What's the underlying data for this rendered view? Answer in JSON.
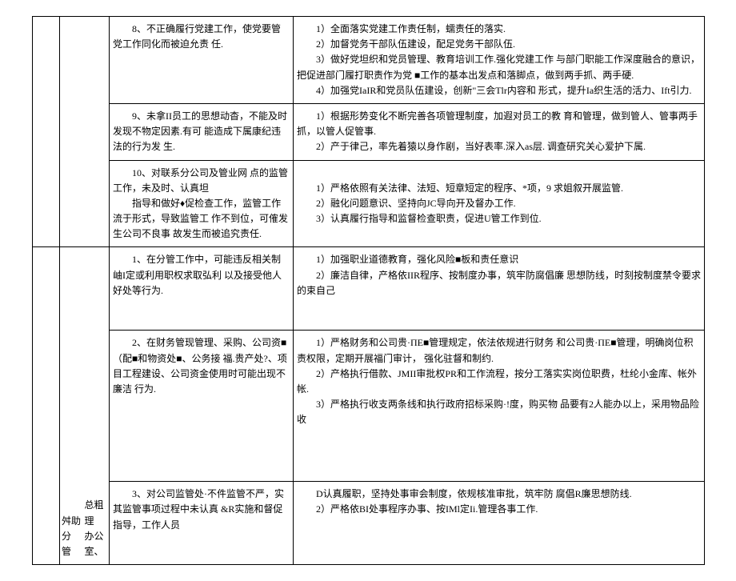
{
  "rows": [
    {
      "col1": "",
      "col2": "",
      "col3": "　　8、不正确履行党建工作，使党要管党工作同化而被迫允责 任.",
      "col4": "　　1）全面落实党建工作责任制，蠕责任的落实.\n　　2）加督党务干部队伍建设，配足党务干部队伍.\n　　3）做好党坦织和党员管理、教育培训工作.强化党建工作 与部门职能工作深度融合的意识，把促进部门履打职责作为党 ■工作的基本出发点和落脚点，做到两手抓、两手硬.\n　　4）加强党IaIR和党员队伍建设，创新\"三会Tlr内容和 形式，提升Ia织生活的活力、Ift引力."
    },
    {
      "col1": "",
      "col2": "",
      "col3": "　　9、未拿II员工的思想动杳，不能及时发现不物定因素.有可 能造成下属康纪违法的行为发 生.",
      "col4": "　　1）根据形势变化不断完善各项管理制度，加遐对员工的教 育和管理，做到管人、管事两手抓，以管人促管事.\n　　2）产于律己，率先着猿以身作剧，当好表率.深入as层. 调查研究关心爱护下属."
    },
    {
      "col1": "",
      "col2": "",
      "col3": "　　10、对联系分公司及管业网 点的监管工作，未及时、认真坦\n　　指导和做好♦促检查工作，监管工作流于形式，导致监管工 作不到位，可傕发生公司不良事 故发生而被追究责任.",
      "col4": "\n　　1）严格依照有关法律、法短、短章短定的程序、*项，9 求姐叙开展监管.\n　　2）融化问题意识、坚持向JC导向开及督办工作.\n　　3）认真履行指导和监督检查职责，促进U管工作到位."
    },
    {
      "col1_rowspan": 3,
      "col1": "",
      "col2_rowspan": 3,
      "col2": "\n\n\n\n\n\n\n\n\n\n\n\n\n\n\n\n舛助\n分　管\n",
      "col2b": "\n\n\n\n\n\n\n\n\n\n\n\n\n\n\n\n总粗理\n办公室、",
      "col3": "　　1、在分管工作中，可能违反相关制岫I定或利用职权求取弘利 以及接受他人好处等行为.",
      "col4": "　　1）加强职业道德教育，强化风险■板和责任意识\n　　2）廉洁自律，产格依IIR程序、按制度办事，筑牢防腐倡廉 思想防线，时刻按制度禁令要求的束自己"
    },
    {
      "col3": "　　2、在财务管现管理、采购、公司资■（配■和物资处■、公务接 福.贵产处?、项目工程建设、公司资金使用时可能出现不廉洁 行为.",
      "col4": "　　1）严格财务和公司贵·ΠE■管理规定，依法依规进行财务 和公司贵·ΠE■管理，明确岗位积责权限，定期开展福门审计， 强化驻督和制约.\n　　2）产格执行借款、JMII审批权PR和工作流程，按分工落实实岗位职费，杜纶小金库、帐外帐.\n　　3）严格执行收支两条线和执行政府招标采购·!度，购买物 品要有2人能办以上，采用物品险收"
    },
    {
      "col3": "　　3、对公司监管处·不件监管不严，实其监管事项过程中未认真 &R实施和督促指导，工作人员",
      "col4": "　　D认真履职，坚持处事审会制度，依规核准审批，筑牢防 腐倡R廉思想防线.\n　　2）严格依BI处事程序办事、按IMl定Ii.管理各事工作."
    }
  ]
}
